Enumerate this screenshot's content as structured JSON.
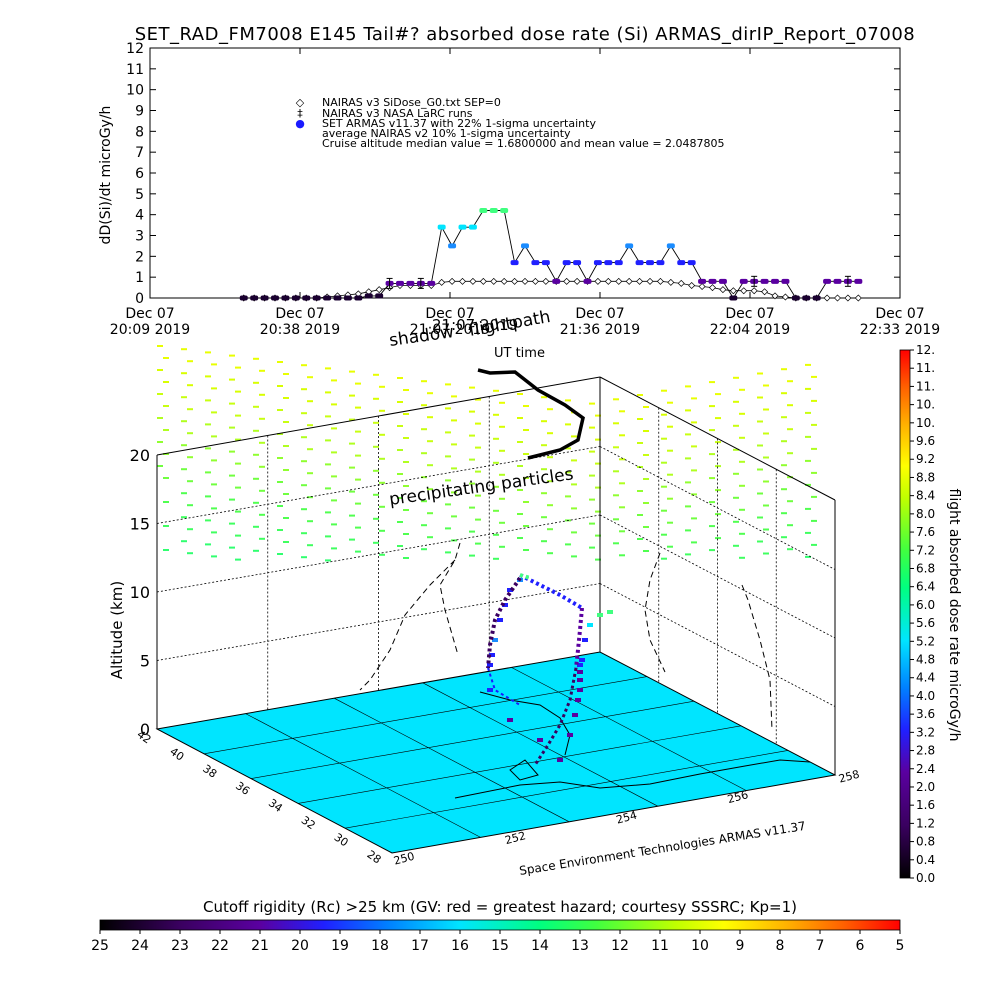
{
  "title": "SET_RAD_FM7008  E145 Tail#? absorbed dose rate (Si) ARMAS_dirIP_Report_07008",
  "chart_data": [
    {
      "type": "line",
      "ylabel": "dD(Si)/dt microGy/h",
      "ylim": [
        0,
        12
      ],
      "yticks": [
        "0",
        "1",
        "2",
        "3",
        "4",
        "5",
        "6",
        "7",
        "8",
        "9",
        "10",
        "11",
        "12"
      ],
      "xticks": [
        {
          "l1": "Dec 07",
          "l2": "20:09 2019"
        },
        {
          "l1": "Dec 07",
          "l2": "20:38 2019"
        },
        {
          "l1": "Dec 07",
          "l2": "21:07 2019"
        },
        {
          "l1": "Dec 07",
          "l2": "21:36 2019"
        },
        {
          "l1": "Dec 07",
          "l2": "22:04 2019"
        },
        {
          "l1": "Dec 07",
          "l2": "22:33 2019"
        }
      ],
      "legend": [
        {
          "symbol": "◇",
          "text": "NAIRAS v3 SiDose_G0.txt SEP=0"
        },
        {
          "symbol": "‡",
          "text": "NAIRAS v3 NASA LaRC runs"
        },
        {
          "symbol": "●",
          "text": "SET ARMAS v11.37 with 22% 1-sigma uncertainty"
        },
        {
          "symbol": "",
          "text": "average NAIRAS v2 10% 1-sigma uncertainty"
        },
        {
          "symbol": "",
          "text": "Cruise altitude median value =  1.6800000 and mean value =   2.0487805"
        }
      ],
      "series": [
        {
          "name": "SET ARMAS v11.37",
          "x": [
            "20:27",
            "20:29",
            "20:31",
            "20:33",
            "20:35",
            "20:37",
            "20:39",
            "20:41",
            "20:43",
            "20:45",
            "20:47",
            "20:49",
            "20:51",
            "20:53",
            "20:55",
            "20:57",
            "20:59",
            "21:01",
            "21:03",
            "21:05",
            "21:07",
            "21:09",
            "21:11",
            "21:13",
            "21:15",
            "21:17",
            "21:19",
            "21:21",
            "21:23",
            "21:25",
            "21:27",
            "21:29",
            "21:31",
            "21:33",
            "21:35",
            "21:37",
            "21:39",
            "21:41",
            "21:43",
            "21:45",
            "21:47",
            "21:49",
            "21:51",
            "21:53",
            "21:55",
            "21:57",
            "21:59",
            "22:01",
            "22:03",
            "22:05",
            "22:07",
            "22:09",
            "22:11",
            "22:13",
            "22:15",
            "22:17",
            "22:19",
            "22:21",
            "22:23",
            "22:25"
          ],
          "values": [
            0.0,
            0.0,
            0.0,
            0.0,
            0.0,
            0.0,
            0.0,
            0.0,
            0.0,
            0.0,
            0.0,
            0.0,
            0.1,
            0.1,
            0.7,
            0.7,
            0.7,
            0.7,
            0.7,
            3.4,
            2.5,
            3.4,
            3.4,
            4.2,
            4.2,
            4.2,
            1.7,
            2.5,
            1.7,
            1.7,
            0.8,
            1.7,
            1.7,
            0.8,
            1.7,
            1.7,
            1.7,
            2.5,
            1.7,
            1.7,
            1.7,
            2.5,
            1.7,
            1.7,
            0.8,
            0.8,
            0.8,
            0.0,
            0.8,
            0.8,
            0.8,
            0.8,
            0.8,
            0.0,
            0.0,
            0.0,
            0.8,
            0.8,
            0.8,
            0.8
          ]
        },
        {
          "name": "NAIRAS v3 SiDose_G0.txt SEP=0",
          "values": [
            0.0,
            0.0,
            0.0,
            0.0,
            0.0,
            0.0,
            0.0,
            0.0,
            0.05,
            0.1,
            0.15,
            0.2,
            0.3,
            0.4,
            0.5,
            0.6,
            0.6,
            0.6,
            0.6,
            0.75,
            0.8,
            0.8,
            0.8,
            0.8,
            0.8,
            0.8,
            0.8,
            0.8,
            0.8,
            0.8,
            0.8,
            0.8,
            0.8,
            0.8,
            0.8,
            0.8,
            0.8,
            0.8,
            0.8,
            0.8,
            0.8,
            0.75,
            0.7,
            0.6,
            0.55,
            0.5,
            0.4,
            0.35,
            0.35,
            0.35,
            0.3,
            0.1,
            0.05,
            0.0,
            0.0,
            0.0,
            0.0,
            0.0,
            0.0,
            0.0
          ]
        }
      ]
    },
    {
      "type": "scatter",
      "zlabel": "Altitude (km)",
      "zticks": [
        "0",
        "5",
        "10",
        "15",
        "20"
      ],
      "lat_ticks": [
        "42",
        "40",
        "38",
        "36",
        "34",
        "32",
        "30",
        "28"
      ],
      "lon_ticks": [
        "250",
        "252",
        "254",
        "256",
        "258"
      ],
      "annotations": [
        "shadow",
        "21:07 2019",
        "flightpath",
        "UT time",
        "precipitating particles"
      ],
      "credit": "Space Environment Technologies ARMAS v11.37",
      "colorbar": {
        "label": "flight absorbed dose rate microGy/h",
        "ticks": [
          "0.0",
          "0.4",
          "0.8",
          "1.2",
          "1.6",
          "2.0",
          "2.4",
          "2.8",
          "3.2",
          "3.6",
          "4.0",
          "4.4",
          "4.8",
          "5.2",
          "5.6",
          "6.0",
          "6.4",
          "6.8",
          "7.2",
          "7.6",
          "8.0",
          "8.4",
          "8.8",
          "9.2",
          "9.6",
          "10.",
          "10.",
          "11.",
          "11.",
          "12."
        ]
      },
      "flight_path": {
        "altitude_km": [
          1.6,
          3.0,
          4.8,
          6.0,
          7.5,
          8.5,
          9.2,
          9.3,
          10.5,
          11.5,
          11.7,
          11.6,
          11.5,
          11.5,
          11.4,
          11.2,
          11.0,
          10.8,
          10.5,
          7.5,
          5.0,
          3.0,
          1.5
        ],
        "dose_microGyh": [
          0.4,
          0.5,
          0.6,
          0.8,
          0.9,
          1.0,
          1.2,
          1.6,
          1.8,
          3.5,
          4.2,
          4.2,
          2.5,
          1.7,
          1.7,
          1.7,
          2.5,
          1.7,
          1.7,
          1.2,
          0.9,
          0.6,
          0.4
        ]
      }
    }
  ],
  "bottom_colorbar": {
    "label": "Cutoff rigidity (Rc) >25 km (GV: red = greatest hazard; courtesy SSSRC; Kp=1)",
    "ticks": [
      "25",
      "24",
      "23",
      "22",
      "21",
      "20",
      "19",
      "18",
      "17",
      "16",
      "15",
      "14",
      "13",
      "12",
      "11",
      "10",
      "9",
      "8",
      "7",
      "6",
      "5"
    ]
  },
  "colors": {
    "armas": "#1a1aff",
    "naairas": "#000000",
    "ground": "#00e5ff",
    "right_scale_top": "#ff0000",
    "right_scale_bottom": "#000000"
  }
}
